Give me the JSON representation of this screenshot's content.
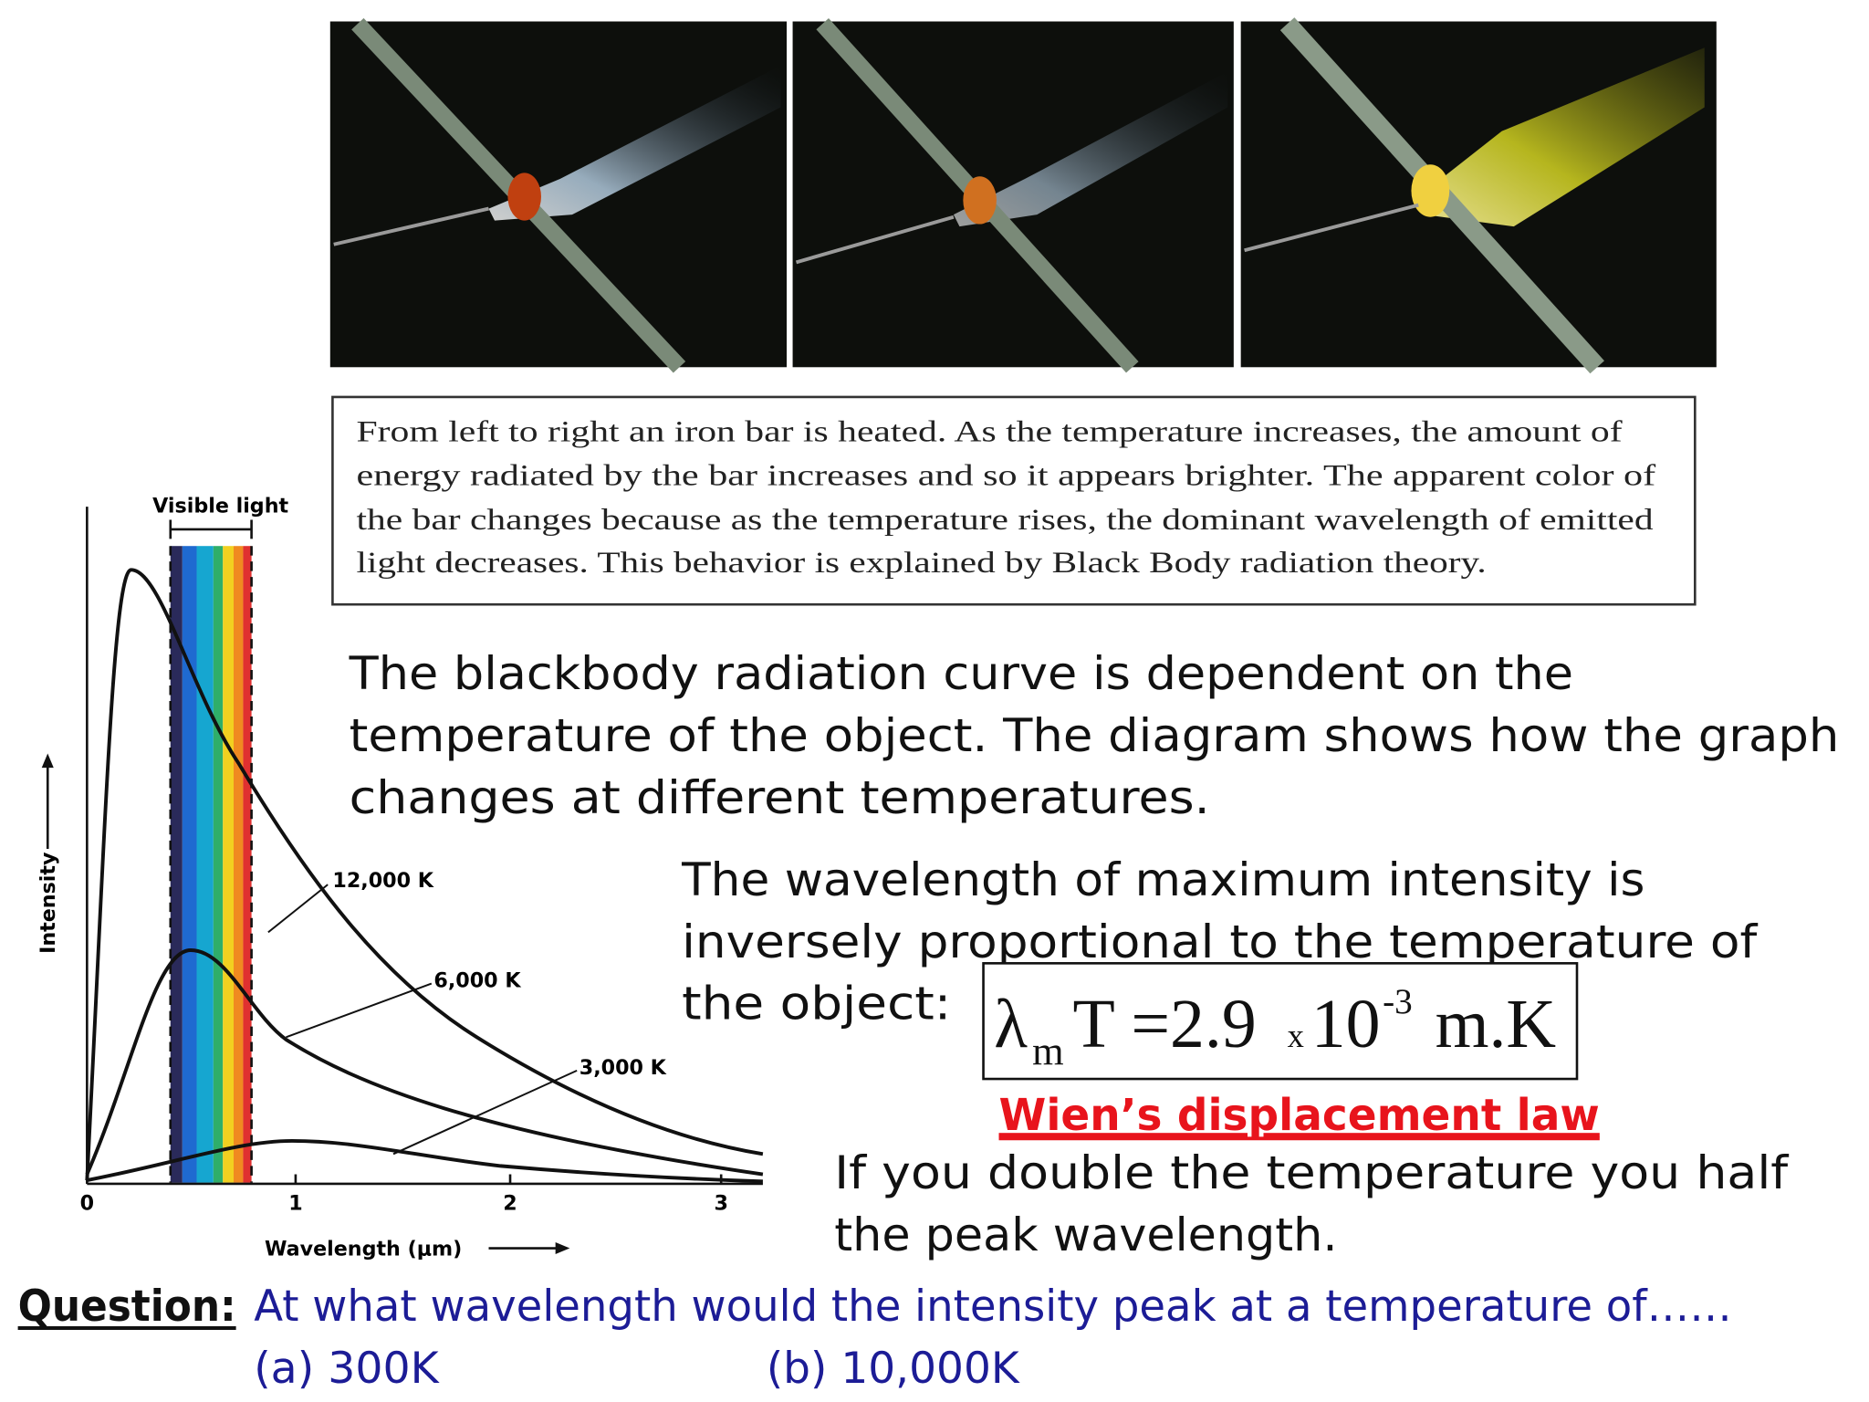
{
  "caption": {
    "lines": [
      "From left to right an iron bar is heated. As the temperature increases, the amount of",
      "energy radiated by the bar increases and so it appears brighter. The apparent color of",
      "the bar changes because as the temperature rises, the dominant wavelength of emitted",
      "light decreases. This behavior is explained by Black Body radiation theory."
    ]
  },
  "graph": {
    "visible_label": "Visible light",
    "y_label": "Intensity",
    "x_label": "Wavelength (μm)",
    "x_ticks": [
      "0",
      "1",
      "2",
      "3"
    ],
    "curves": [
      "12,000 K",
      "6,000 K",
      "3,000 K"
    ]
  },
  "paragraph1": {
    "lines": [
      "The blackbody radiation curve is dependent on the",
      "temperature of the object. The diagram shows how the graph",
      "changes at different temperatures."
    ]
  },
  "paragraph2": {
    "lines": [
      "The wavelength of maximum intensity is",
      "inversely proportional to the temperature of",
      "the object:"
    ]
  },
  "equation": {
    "lambda": "λ",
    "subscript": "m",
    "main": "T =2.9",
    "times": "x",
    "base": "10",
    "exponent": "-3",
    "unit": "m.K"
  },
  "law": "Wien’s displacement law",
  "note": {
    "lines": [
      "If you double the temperature you half",
      "the peak wavelength."
    ]
  },
  "question": {
    "label": "Question:",
    "text": "At what wavelength would the intensity peak at a temperature of……",
    "options": [
      "(a) 300K",
      "(b) 10,000K"
    ]
  }
}
